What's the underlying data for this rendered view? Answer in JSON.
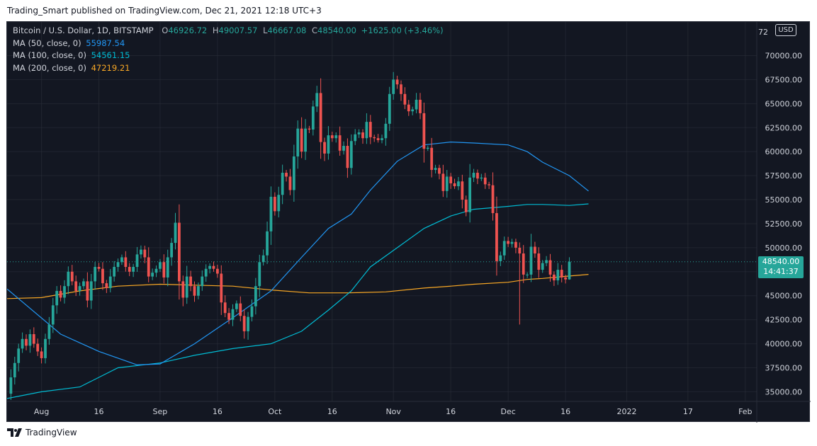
{
  "header": {
    "publisher": "Trading_Smart published on TradingView.com, Dec 21, 2021 12:18 UTC+3"
  },
  "footer": {
    "brand": "TradingView"
  },
  "legend": {
    "symbol": "Bitcoin / U.S. Dollar, 1D, BITSTAMP",
    "o_label": "O",
    "o": "46926.72",
    "h_label": "H",
    "h": "49007.57",
    "l_label": "L",
    "l": "46667.08",
    "c_label": "C",
    "c": "48540.00",
    "change": "+1625.00 (+3.46%)",
    "ma50_label": "MA (50, close, 0)",
    "ma50": "55987.54",
    "ma100_label": "MA (100, close, 0)",
    "ma100": "54561.15",
    "ma200_label": "MA (200, close, 0)",
    "ma200": "47219.21"
  },
  "currency": "USD",
  "last_price": {
    "price": "48540.00",
    "countdown": "14:41:37"
  },
  "colors": {
    "up": "#26a69a",
    "down": "#ef5350",
    "ma50": "#2196f3",
    "ma100": "#00bcd4",
    "ma200": "#f9a825",
    "bg": "#131722",
    "grid": "#2a2e39",
    "text": "#d1d4dc"
  },
  "chart_data": {
    "type": "candlestick",
    "title": "Bitcoin / U.S. Dollar, 1D, BITSTAMP",
    "x_ticks": [
      {
        "label": "Aug",
        "day": 0
      },
      {
        "label": "16",
        "day": 15
      },
      {
        "label": "Sep",
        "day": 31
      },
      {
        "label": "16",
        "day": 46
      },
      {
        "label": "Oct",
        "day": 61
      },
      {
        "label": "16",
        "day": 76
      },
      {
        "label": "Nov",
        "day": 92
      },
      {
        "label": "16",
        "day": 107
      },
      {
        "label": "Dec",
        "day": 122
      },
      {
        "label": "16",
        "day": 137
      },
      {
        "label": "2022",
        "day": 153
      },
      {
        "label": "17",
        "day": 169
      },
      {
        "label": "Feb",
        "day": 184
      }
    ],
    "y_ticks": [
      35000,
      37500,
      40000,
      42500,
      45000,
      47500,
      50000,
      52500,
      55000,
      57500,
      60000,
      62500,
      65000,
      67500,
      70000
    ],
    "y_tick_labels": [
      "35000.00",
      "37500.00",
      "40000.00",
      "42500.00",
      "45000.00",
      "47500.00",
      "50000.00",
      "52500.00",
      "55000.00",
      "57500.00",
      "60000.00",
      "62500.00",
      "65000.00",
      "67500.00",
      "70000.00"
    ],
    "y_top_partial_label": "72",
    "x_range_days": [
      -9,
      187
    ],
    "y_range": [
      34000,
      73500
    ],
    "closes_start_day": -9,
    "closes": [
      34800,
      36500,
      38000,
      39500,
      40500,
      39800,
      41000,
      40000,
      39200,
      38500,
      40500,
      42000,
      44000,
      45500,
      44800,
      46000,
      47500,
      46500,
      45500,
      46000,
      46500,
      44500,
      46500,
      48000,
      47800,
      46300,
      45800,
      47000,
      48000,
      48500,
      49000,
      48000,
      47500,
      48000,
      49300,
      49800,
      49000,
      47000,
      47400,
      47800,
      48500,
      46900,
      49000,
      50500,
      52600,
      46500,
      44800,
      47000,
      46000,
      45000,
      46000,
      47000,
      47800,
      48100,
      47800,
      47300,
      44300,
      43200,
      42500,
      43600,
      44200,
      42900,
      41300,
      42800,
      43900,
      46000,
      48500,
      49200,
      51700,
      55300,
      53800,
      55500,
      57800,
      57400,
      56000,
      59500,
      62400,
      60000,
      62400,
      62300,
      64700,
      66100,
      61000,
      59800,
      61700,
      61400,
      61700,
      60100,
      60600,
      58300,
      61100,
      61800,
      62000,
      61400,
      63100,
      61500,
      61400,
      61200,
      61400,
      62900,
      66000,
      67500,
      67000,
      66000,
      64900,
      64200,
      64400,
      65400,
      64000,
      60300,
      60400,
      58100,
      58300,
      57700,
      55900,
      57400,
      56700,
      56400,
      56900,
      55000,
      53700,
      57300,
      57800,
      57200,
      57300,
      56600,
      56500,
      53600,
      48600,
      49200,
      50700,
      50400,
      50600,
      50000,
      49400,
      47200,
      47200,
      50100,
      49400,
      47700,
      48400,
      48700,
      47200,
      46600,
      47700,
      46900,
      46700,
      48540
    ],
    "ma50_from_day": -9,
    "ma50": [
      [
        -9,
        45700
      ],
      [
        5,
        41000
      ],
      [
        15,
        39200
      ],
      [
        25,
        37800
      ],
      [
        31,
        37900
      ],
      [
        40,
        40000
      ],
      [
        50,
        42700
      ],
      [
        60,
        45500
      ],
      [
        68,
        49000
      ],
      [
        75,
        52000
      ],
      [
        81,
        53500
      ],
      [
        86,
        56000
      ],
      [
        93,
        59000
      ],
      [
        100,
        60700
      ],
      [
        107,
        61000
      ],
      [
        113,
        60900
      ],
      [
        122,
        60700
      ],
      [
        127,
        60000
      ],
      [
        131,
        58900
      ],
      [
        138,
        57500
      ],
      [
        143,
        55900
      ]
    ],
    "ma100": [
      [
        -9,
        34300
      ],
      [
        0,
        35000
      ],
      [
        10,
        35500
      ],
      [
        20,
        37500
      ],
      [
        31,
        38000
      ],
      [
        40,
        38800
      ],
      [
        50,
        39500
      ],
      [
        60,
        40000
      ],
      [
        68,
        41300
      ],
      [
        75,
        43500
      ],
      [
        81,
        45500
      ],
      [
        86,
        48000
      ],
      [
        93,
        50000
      ],
      [
        100,
        52000
      ],
      [
        107,
        53300
      ],
      [
        113,
        54000
      ],
      [
        122,
        54300
      ],
      [
        127,
        54500
      ],
      [
        131,
        54500
      ],
      [
        138,
        54400
      ],
      [
        143,
        54561
      ]
    ],
    "ma200": [
      [
        -9,
        44700
      ],
      [
        0,
        44800
      ],
      [
        10,
        45500
      ],
      [
        20,
        46000
      ],
      [
        31,
        46200
      ],
      [
        40,
        46100
      ],
      [
        50,
        46000
      ],
      [
        60,
        45600
      ],
      [
        70,
        45300
      ],
      [
        80,
        45300
      ],
      [
        90,
        45400
      ],
      [
        100,
        45800
      ],
      [
        107,
        46000
      ],
      [
        113,
        46200
      ],
      [
        122,
        46400
      ],
      [
        127,
        46700
      ],
      [
        131,
        46800
      ],
      [
        138,
        47050
      ],
      [
        143,
        47219
      ]
    ]
  }
}
